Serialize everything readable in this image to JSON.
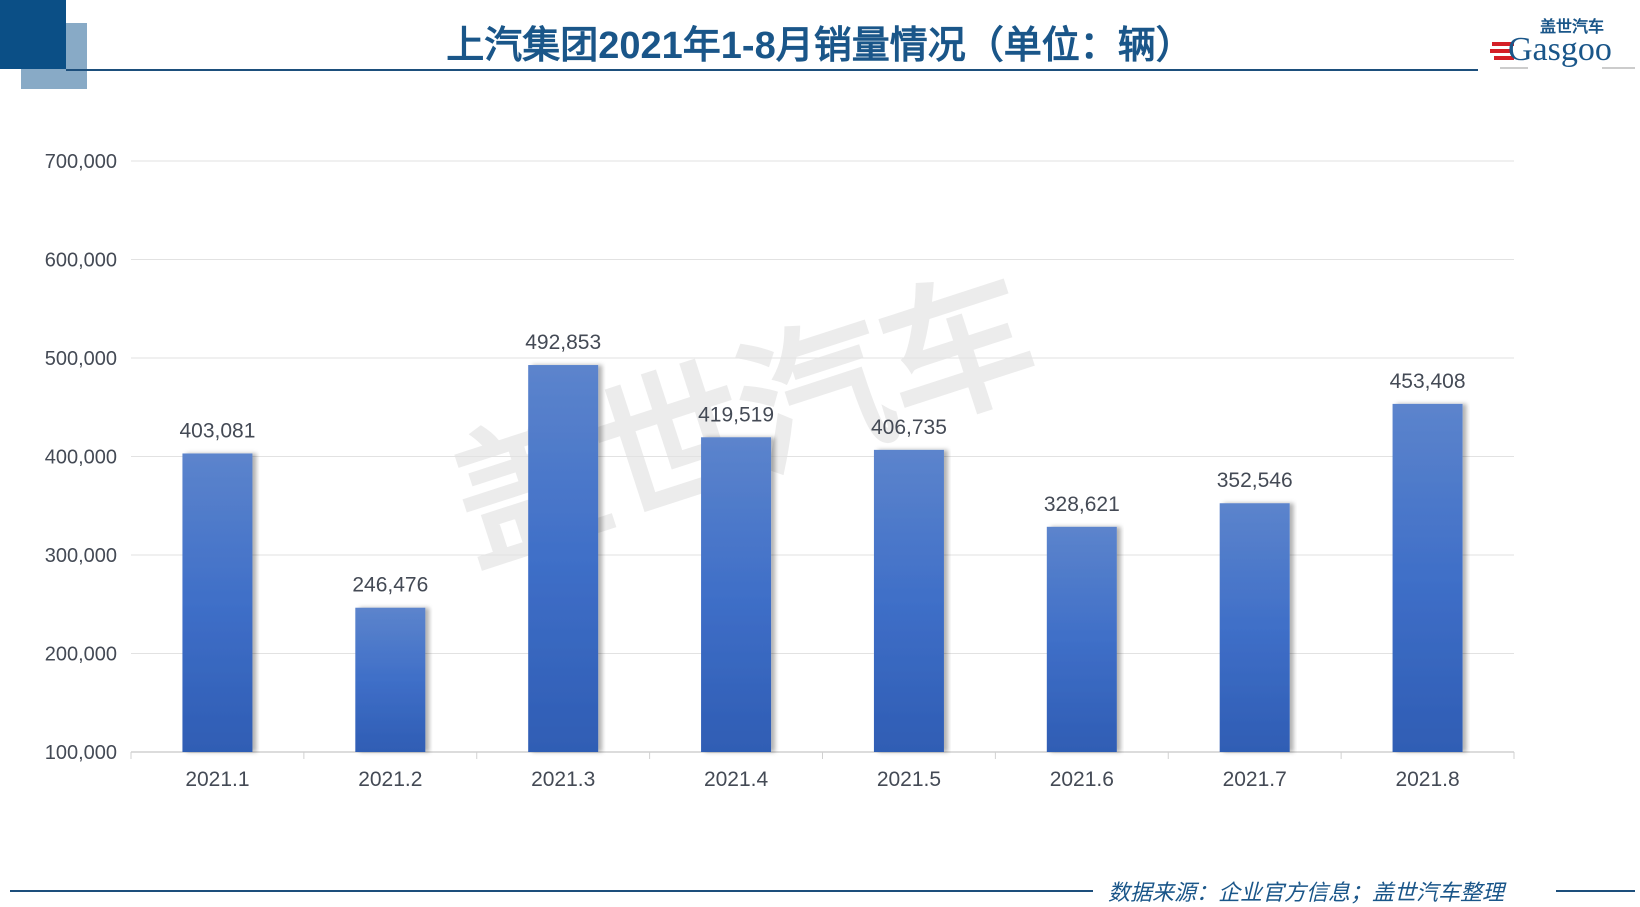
{
  "title": "上汽集团2021年1-8月销量情况（单位：辆）",
  "source": "数据来源：企业官方信息；盖世汽车整理",
  "logo": {
    "cn": "盖世汽车",
    "en": "Gasgoo"
  },
  "watermark": "盖世汽车 GASGOO",
  "colors": {
    "bar": "#3f6fc8",
    "title": "#1a5689",
    "accent_dark": "#0b4f86",
    "accent_light": "#88aac6"
  },
  "chart_data": {
    "type": "bar",
    "title": "上汽集团2021年1-8月销量情况（单位：辆）",
    "categories": [
      "2021.1",
      "2021.2",
      "2021.3",
      "2021.4",
      "2021.5",
      "2021.6",
      "2021.7",
      "2021.8"
    ],
    "values": [
      403081,
      246476,
      492853,
      419519,
      406735,
      328621,
      352546,
      453408
    ],
    "value_labels": [
      "403,081",
      "246,476",
      "492,853",
      "419,519",
      "406,735",
      "328,621",
      "352,546",
      "453,408"
    ],
    "ylim": [
      100000,
      700000
    ],
    "yticks": [
      100000,
      200000,
      300000,
      400000,
      500000,
      600000,
      700000
    ],
    "ytick_labels": [
      "100,000",
      "200,000",
      "300,000",
      "400,000",
      "500,000",
      "600,000",
      "700,000"
    ],
    "grid": true,
    "xlabel": "",
    "ylabel": ""
  }
}
